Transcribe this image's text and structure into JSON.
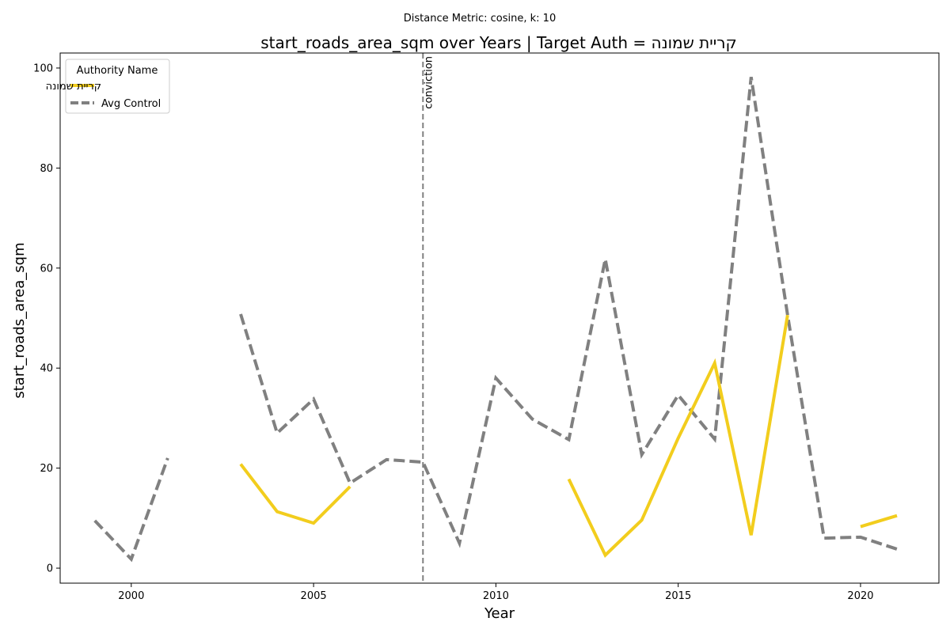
{
  "chart_data": {
    "type": "line",
    "suptitle": "Distance Metric: cosine, k: 10",
    "title": "start_roads_area_sqm over Years | Target Auth = קריית שמונה",
    "xlabel": "Year",
    "ylabel": "start_roads_area_sqm",
    "xlim": [
      1998.05,
      2022.15
    ],
    "ylim": [
      -3,
      103
    ],
    "xticks": [
      2000,
      2005,
      2010,
      2015,
      2020
    ],
    "yticks": [
      0,
      20,
      40,
      60,
      80,
      100
    ],
    "grid": false,
    "legend": {
      "title": "Authority Name",
      "placement": "top-left"
    },
    "vline": {
      "x": 2008,
      "label": "conviction",
      "color": "#808080"
    },
    "series": [
      {
        "name": "קריית שמונה",
        "color": "#f2cd1d",
        "style": "solid",
        "points": [
          [
            2003,
            20.8
          ],
          [
            2004,
            11.3
          ],
          [
            2005,
            9.0
          ],
          [
            2006,
            16.3
          ],
          [
            2007,
            null
          ],
          [
            2008,
            null
          ],
          [
            2009,
            null
          ],
          [
            2010,
            null
          ],
          [
            2011,
            null
          ],
          [
            2012,
            17.8
          ],
          [
            2013,
            2.6
          ],
          [
            2014,
            9.6
          ],
          [
            2015,
            26.0
          ],
          [
            2016,
            41.0
          ],
          [
            2017,
            6.6
          ],
          [
            2018,
            50.6
          ],
          [
            2019,
            null
          ],
          [
            2020,
            8.3
          ],
          [
            2021,
            10.5
          ]
        ]
      },
      {
        "name": "Avg Control",
        "color": "#808080",
        "style": "dashed",
        "points": [
          [
            1999,
            9.5
          ],
          [
            2000,
            1.8
          ],
          [
            2001,
            22.0
          ],
          [
            2002,
            null
          ],
          [
            2003,
            50.8
          ],
          [
            2004,
            27.0
          ],
          [
            2005,
            33.8
          ],
          [
            2006,
            17.0
          ],
          [
            2007,
            21.7
          ],
          [
            2008,
            21.2
          ],
          [
            2009,
            5.0
          ],
          [
            2010,
            38.0
          ],
          [
            2011,
            29.8
          ],
          [
            2012,
            25.7
          ],
          [
            2013,
            61.8
          ],
          [
            2014,
            22.7
          ],
          [
            2015,
            34.6
          ],
          [
            2016,
            25.8
          ],
          [
            2017,
            98.2
          ],
          [
            2018,
            50.6
          ],
          [
            2019,
            6.0
          ],
          [
            2020,
            6.2
          ],
          [
            2021,
            3.8
          ]
        ]
      }
    ]
  }
}
